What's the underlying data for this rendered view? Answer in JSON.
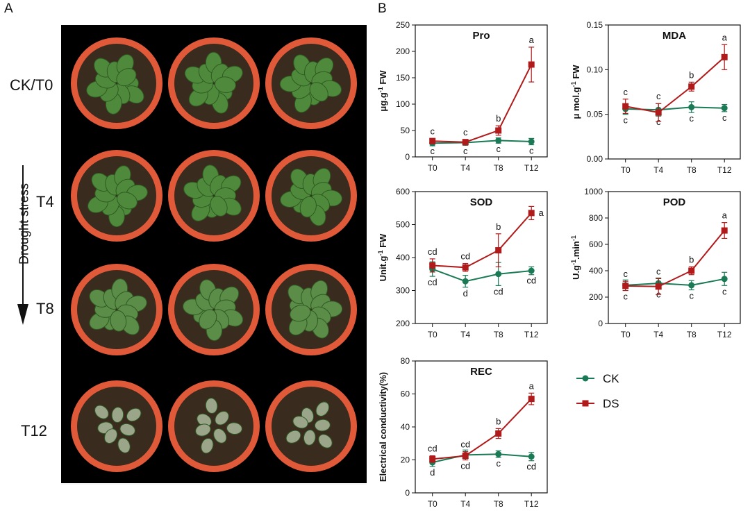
{
  "panel_a_label": "A",
  "panel_b_label": "B",
  "photo_panel": {
    "side_label": "Drought stress",
    "rows": [
      {
        "label": "CK/T0",
        "condition": "healthy"
      },
      {
        "label": "T4",
        "condition": "healthy"
      },
      {
        "label": "T8",
        "condition": "mild"
      },
      {
        "label": "T12",
        "condition": "severe"
      }
    ]
  },
  "colors": {
    "ck": "#1a7a55",
    "ds": "#b01a1a",
    "photo_bg": "#000000",
    "pot": "#e05a3a",
    "soil": "#3a2b1f",
    "leaf": "#4f8a3c"
  },
  "legend": {
    "ck": "CK",
    "ds": "DS"
  },
  "chart_data": [
    {
      "type": "line",
      "title": "Pro",
      "ylabel": "μg.g-1 FW",
      "categories": [
        "T0",
        "T4",
        "T8",
        "T12"
      ],
      "ylim": [
        0,
        250
      ],
      "yticks": [
        0,
        50,
        100,
        150,
        200,
        250
      ],
      "tick_decimals": 0,
      "series": [
        {
          "name": "CK",
          "values": [
            26,
            27,
            31,
            29
          ],
          "errors": [
            5,
            5,
            5,
            6
          ],
          "letters": [
            "c",
            "c",
            "c",
            "c"
          ]
        },
        {
          "name": "DS",
          "values": [
            30,
            28,
            50,
            175
          ],
          "errors": [
            5,
            5,
            9,
            33
          ],
          "letters": [
            "c",
            "c",
            "b",
            "a"
          ]
        }
      ]
    },
    {
      "type": "line",
      "title": "MDA",
      "ylabel": "μ mol.g-1 FW",
      "categories": [
        "T0",
        "T4",
        "T8",
        "T12"
      ],
      "ylim": [
        0,
        0.15
      ],
      "yticks": [
        0.0,
        0.05,
        0.1,
        0.15
      ],
      "tick_decimals": 2,
      "series": [
        {
          "name": "CK",
          "values": [
            0.056,
            0.055,
            0.058,
            0.057
          ],
          "errors": [
            0.006,
            0.007,
            0.006,
            0.004
          ],
          "letters": [
            "c",
            "c",
            "c",
            "c"
          ]
        },
        {
          "name": "DS",
          "values": [
            0.059,
            0.052,
            0.081,
            0.114
          ],
          "errors": [
            0.008,
            0.01,
            0.005,
            0.014
          ],
          "letters": [
            "c",
            "c",
            "b",
            "a"
          ]
        }
      ]
    },
    {
      "type": "line",
      "title": "SOD",
      "ylabel": "Unit.g-1 FW",
      "categories": [
        "T0",
        "T4",
        "T8",
        "T12"
      ],
      "ylim": [
        200,
        600
      ],
      "yticks": [
        200,
        300,
        400,
        500,
        600
      ],
      "tick_decimals": 0,
      "series": [
        {
          "name": "CK",
          "values": [
            365,
            328,
            350,
            360
          ],
          "errors": [
            22,
            18,
            35,
            12
          ],
          "letters": [
            "cd",
            "d",
            "cd",
            "cd"
          ]
        },
        {
          "name": "DS",
          "values": [
            376,
            370,
            422,
            535
          ],
          "errors": [
            20,
            12,
            50,
            20
          ],
          "letters": [
            "cd",
            "cd",
            "b",
            "a"
          ]
        }
      ]
    },
    {
      "type": "line",
      "title": "POD",
      "ylabel": "U.g-1.min-1",
      "categories": [
        "T0",
        "T4",
        "T8",
        "T12"
      ],
      "ylim": [
        0,
        1000
      ],
      "yticks": [
        0,
        200,
        400,
        600,
        800,
        1000
      ],
      "tick_decimals": 0,
      "series": [
        {
          "name": "CK",
          "values": [
            290,
            305,
            290,
            338
          ],
          "errors": [
            40,
            40,
            35,
            50
          ],
          "letters": [
            "c",
            "c",
            "c",
            "c"
          ]
        },
        {
          "name": "DS",
          "values": [
            285,
            280,
            400,
            705
          ],
          "errors": [
            35,
            60,
            30,
            60
          ],
          "letters": [
            "c",
            "c",
            "b",
            "a"
          ]
        }
      ]
    },
    {
      "type": "line",
      "title": "REC",
      "ylabel": "Electrical conductivity(%)",
      "categories": [
        "T0",
        "T4",
        "T8",
        "T12"
      ],
      "ylim": [
        0,
        80
      ],
      "yticks": [
        0,
        20,
        40,
        60,
        80
      ],
      "tick_decimals": 0,
      "series": [
        {
          "name": "CK",
          "values": [
            18.5,
            23,
            23.5,
            22
          ],
          "errors": [
            2.5,
            3,
            2,
            2.5
          ],
          "letters": [
            "d",
            "cd",
            "c",
            "cd"
          ]
        },
        {
          "name": "DS",
          "values": [
            20.5,
            22.5,
            36,
            57
          ],
          "errors": [
            2,
            2.5,
            3,
            3.5
          ],
          "letters": [
            "cd",
            "cd",
            "b",
            "a"
          ]
        }
      ]
    }
  ]
}
